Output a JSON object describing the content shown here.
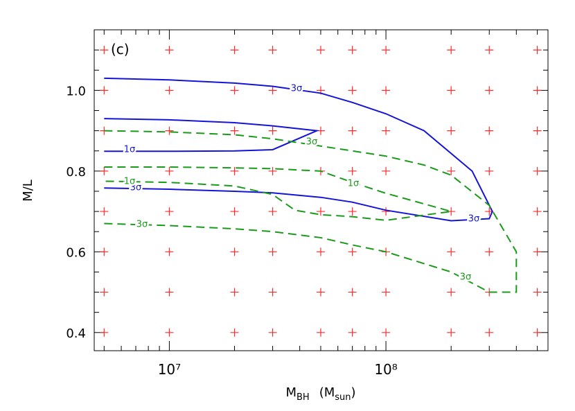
{
  "chart_data": {
    "type": "contour",
    "annotation": "(c)",
    "xlabel": [
      "M",
      "BH",
      "(M",
      "sun",
      ")"
    ],
    "ylabel": "M/L",
    "xlog": true,
    "xlim": [
      4500000,
      560000000
    ],
    "ylim": [
      0.355,
      1.15
    ],
    "xticks": [
      {
        "value": 10000000,
        "label": "10⁷"
      },
      {
        "value": 100000000,
        "label": "10⁸"
      }
    ],
    "xminorticks": [
      5000000,
      6000000,
      7000000,
      8000000,
      9000000,
      20000000,
      30000000,
      40000000,
      50000000,
      60000000,
      70000000,
      80000000,
      90000000,
      200000000,
      300000000,
      400000000,
      500000000
    ],
    "yticks": [
      0.4,
      0.6,
      0.8,
      {
        "value": 1,
        "label": "1.0"
      }
    ],
    "yminorticks": [
      0.45,
      0.5,
      0.55,
      0.65,
      0.7,
      0.75,
      0.85,
      0.9,
      0.95,
      1.05,
      1.1
    ],
    "grid_points": {
      "color": "#ff2a2a",
      "x": [
        5000000,
        10000000,
        20000000,
        30000000,
        50000000,
        70000000,
        100000000,
        200000000,
        300000000,
        500000000
      ],
      "y": [
        0.4,
        0.5,
        0.6,
        0.7,
        0.8,
        0.9,
        1.0,
        1.1
      ]
    },
    "series": [
      {
        "color": "#1414d6",
        "dashed": false,
        "labels": [
          "3σ",
          "3σ",
          "3σ"
        ],
        "x": [
          5000000,
          10000000,
          20000000,
          30000000,
          50000000,
          70000000,
          100000000,
          150000000,
          250000000,
          310000000,
          300000000,
          200000000,
          100000000,
          70000000,
          50000000,
          30000000,
          20000000,
          10000000,
          5000000
        ],
        "y": [
          1.03,
          1.026,
          1.018,
          1.01,
          0.993,
          0.97,
          0.942,
          0.9,
          0.8,
          0.7,
          0.682,
          0.677,
          0.703,
          0.723,
          0.735,
          0.746,
          0.75,
          0.755,
          0.758
        ]
      },
      {
        "color": "#1414d6",
        "dashed": false,
        "labels": [
          "1σ"
        ],
        "x": [
          5000000,
          10000000,
          20000000,
          30000000,
          48000000,
          30000000,
          20000000,
          10000000,
          5000000
        ],
        "y": [
          0.93,
          0.927,
          0.92,
          0.912,
          0.9,
          0.853,
          0.85,
          0.849,
          0.849
        ]
      },
      {
        "color": "#1a9a1a",
        "dashed": true,
        "labels": [
          "3σ",
          "3σ",
          "3σ"
        ],
        "x": [
          5000000,
          10000000,
          20000000,
          30000000,
          50000000,
          70000000,
          100000000,
          150000000,
          200000000,
          300000000,
          400000000,
          400000000,
          300000000,
          200000000,
          100000000,
          70000000,
          50000000,
          30000000,
          20000000,
          10000000,
          5000000
        ],
        "y": [
          0.9,
          0.897,
          0.89,
          0.88,
          0.862,
          0.85,
          0.837,
          0.815,
          0.79,
          0.715,
          0.6,
          0.5,
          0.5,
          0.55,
          0.6,
          0.617,
          0.635,
          0.65,
          0.657,
          0.665,
          0.67
        ]
      },
      {
        "color": "#1a9a1a",
        "dashed": true,
        "labels": [
          "1σ",
          "1σ"
        ],
        "x": [
          5000000,
          10000000,
          20000000,
          30000000,
          50000000,
          70000000,
          100000000,
          200000000,
          100000000,
          70000000,
          50000000,
          38000000,
          30000000,
          20000000,
          10000000,
          5000000
        ],
        "y": [
          0.81,
          0.81,
          0.808,
          0.806,
          0.8,
          0.772,
          0.745,
          0.7,
          0.678,
          0.687,
          0.692,
          0.703,
          0.742,
          0.763,
          0.772,
          0.775
        ]
      }
    ]
  }
}
